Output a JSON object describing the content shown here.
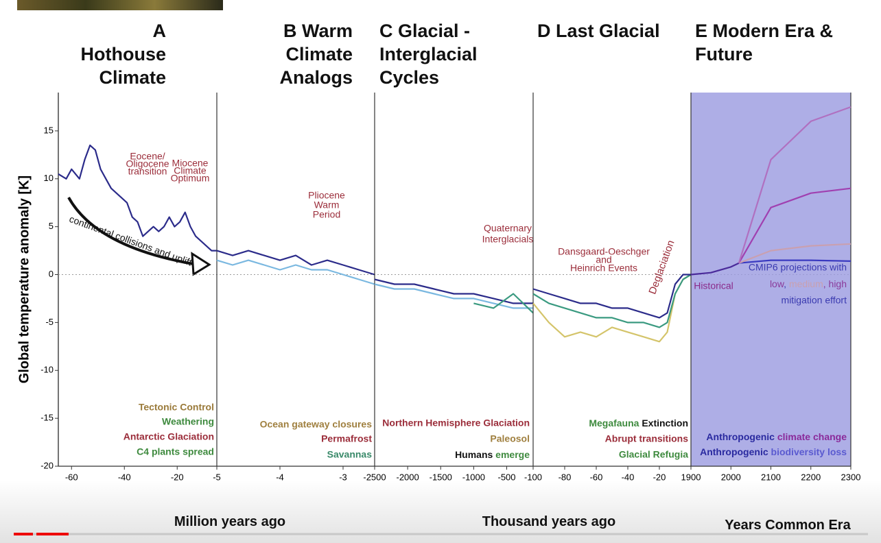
{
  "chart_data": [
    {
      "type": "line",
      "title": "A Hothouse Climate",
      "ylabel": "Global temperature anomaly [K]",
      "xlabel": "Million years ago",
      "xlim": [
        -65,
        -5
      ],
      "xticks": [
        -60,
        -40,
        -20
      ],
      "ylim": [
        -20,
        19
      ],
      "yticks": [
        -20,
        -15,
        -10,
        -5,
        0,
        5,
        10,
        15
      ],
      "reference_line": 0,
      "x": [
        -65,
        -62,
        -60,
        -57,
        -55,
        -53,
        -51,
        -49,
        -47,
        -45,
        -43,
        -41,
        -39,
        -37,
        -35,
        -33,
        -31,
        -29,
        -27,
        -25,
        -23,
        -21,
        -19,
        -17,
        -15,
        -13,
        -11,
        -9,
        -7,
        -5
      ],
      "series": [
        {
          "color": "#2b2b8a",
          "values": [
            10.5,
            10,
            11,
            10,
            12,
            13.5,
            13,
            11,
            10,
            9,
            8.5,
            8,
            7.5,
            6,
            5.5,
            4,
            4.5,
            5,
            4.5,
            5,
            6,
            5,
            5.5,
            6.5,
            5,
            4,
            3.5,
            3,
            2.5,
            2.5
          ]
        }
      ],
      "annotations": [
        {
          "color": "#9b2d3a",
          "lines": [
            "Eocene/",
            "Oligocene",
            "transition"
          ]
        },
        {
          "color": "#9b2d3a",
          "lines": [
            "Miocene",
            "Climate",
            "Optimum"
          ]
        },
        {
          "color": "#111111",
          "lines": [
            "continental collisions and uplift"
          ]
        },
        {
          "color": "#9a7a3a",
          "lines": [
            "Tectonic Control"
          ]
        },
        {
          "color": "#3e8a3e",
          "lines": [
            "Weathering"
          ]
        },
        {
          "color": "#9b2d3a",
          "lines": [
            "Antarctic Glaciation"
          ]
        },
        {
          "color": "#3e8a3e",
          "lines": [
            "C4 plants spread"
          ]
        }
      ]
    },
    {
      "type": "line",
      "title": "B Warm Climate Analogs",
      "xlim": [
        -5,
        -2.5
      ],
      "xticks": [
        -5,
        -4,
        -3
      ],
      "ylim": [
        -20,
        19
      ],
      "x": [
        -5,
        -4.75,
        -4.5,
        -4.25,
        -4,
        -3.75,
        -3.5,
        -3.25,
        -3,
        -2.75,
        -2.5
      ],
      "series": [
        {
          "color": "#2b2b8a",
          "values": [
            2.5,
            2,
            2.5,
            2,
            1.5,
            2,
            1,
            1.5,
            1,
            0.5,
            0
          ]
        },
        {
          "color": "#7ab8e0",
          "values": [
            1.5,
            1,
            1.5,
            1,
            0.5,
            1,
            0.5,
            0.5,
            0,
            -0.5,
            -1
          ]
        }
      ],
      "annotations": [
        {
          "color": "#9b2d3a",
          "lines": [
            "Pliocene",
            "Warm",
            "Period"
          ]
        },
        {
          "color": "#a08040",
          "lines": [
            "Ocean gateway closures"
          ]
        },
        {
          "color": "#9b2d3a",
          "lines": [
            "Permafrost"
          ]
        },
        {
          "color": "#3a8a6a",
          "lines": [
            "Savannas"
          ]
        }
      ]
    },
    {
      "type": "line",
      "title": "C Glacial - Interglacial Cycles",
      "xlabel": "Thousand years ago",
      "xlim": [
        -2500,
        -100
      ],
      "xticks": [
        -2500,
        -2000,
        -1500,
        -1000,
        -500
      ],
      "ylim": [
        -20,
        19
      ],
      "x": [
        -2500,
        -2200,
        -1900,
        -1600,
        -1300,
        -1000,
        -700,
        -400,
        -100
      ],
      "series": [
        {
          "color": "#2b2b8a",
          "values": [
            -0.5,
            -1,
            -1,
            -1.5,
            -2,
            -2,
            -2.5,
            -3,
            -3
          ]
        },
        {
          "color": "#7ab8e0",
          "values": [
            -1,
            -1.5,
            -1.5,
            -2,
            -2.5,
            -2.5,
            -3,
            -3.5,
            -3.5
          ]
        },
        {
          "color": "#3a9a80",
          "values": [
            null,
            null,
            null,
            null,
            null,
            -3,
            -3.5,
            -2,
            -4
          ]
        }
      ],
      "annotations": [
        {
          "color": "#9b2d3a",
          "lines": [
            "Quaternary",
            "Interglacials"
          ]
        },
        {
          "color": "#9b2d3a",
          "lines": [
            "Northern Hemisphere Glaciation"
          ]
        },
        {
          "color": "#a08040",
          "lines": [
            "Paleosol"
          ]
        },
        {
          "color": "#111111",
          "lines": [
            [
              {
                "text": "Humans",
                "color": "#111111"
              },
              {
                "text": " emerge",
                "color": "#3e8a3e"
              }
            ]
          ]
        }
      ]
    },
    {
      "type": "line",
      "title": "D Last Glacial",
      "xlim": [
        -100,
        0
      ],
      "xticks": [
        -100,
        -80,
        -60,
        -40,
        -20
      ],
      "ylim": [
        -20,
        19
      ],
      "x": [
        -100,
        -90,
        -80,
        -70,
        -60,
        -50,
        -40,
        -30,
        -20,
        -15,
        -10,
        -5,
        0
      ],
      "series": [
        {
          "color": "#d4c46a",
          "values": [
            -3,
            -5,
            -6.5,
            -6,
            -6.5,
            -5.5,
            -6,
            -6.5,
            -7,
            -6,
            -2,
            -0.5,
            0
          ]
        },
        {
          "color": "#3a9a80",
          "values": [
            -2,
            -3,
            -3.5,
            -4,
            -4.5,
            -4.5,
            -5,
            -5,
            -5.5,
            -5,
            -2,
            -0.5,
            0
          ]
        },
        {
          "color": "#2b2b8a",
          "values": [
            -1.5,
            -2,
            -2.5,
            -3,
            -3,
            -3.5,
            -3.5,
            -4,
            -4.5,
            -4,
            -1,
            0,
            0
          ]
        }
      ],
      "annotations": [
        {
          "color": "#9b2d3a",
          "lines": [
            "Dansgaard-Oeschger",
            "and",
            "Heinrich Events"
          ]
        },
        {
          "color": "#9b2d3a",
          "lines": [
            "Deglaciation"
          ]
        },
        {
          "color": "#111111",
          "lines": [
            [
              {
                "text": "Megafauna",
                "color": "#3e8a3e"
              },
              {
                "text": " Extinction",
                "color": "#111111"
              }
            ]
          ]
        },
        {
          "color": "#9b2d3a",
          "lines": [
            "Abrupt transitions"
          ]
        },
        {
          "color": "#3e8a3e",
          "lines": [
            "Glacial Refugia"
          ]
        }
      ]
    },
    {
      "type": "line",
      "title": "E Modern Era & Future",
      "xlabel": "Years Common Era",
      "background": "#9a9ae0",
      "xlim": [
        1900,
        2300
      ],
      "xticks": [
        1900,
        2000,
        2100,
        2200,
        2300
      ],
      "ylim": [
        -20,
        19
      ],
      "x": [
        1900,
        1950,
        2000,
        2020,
        2100,
        2200,
        2300
      ],
      "series": [
        {
          "color": "#4a2a9a",
          "values": [
            0,
            0.2,
            0.8,
            1.2,
            null,
            null,
            null
          ]
        },
        {
          "color": "#3a3ac0",
          "values": [
            null,
            null,
            null,
            1.2,
            1.5,
            1.5,
            1.4
          ]
        },
        {
          "color": "#c9a0b0",
          "values": [
            null,
            null,
            null,
            1.2,
            2.5,
            3,
            3.2
          ]
        },
        {
          "color": "#a040b0",
          "values": [
            null,
            null,
            null,
            1.2,
            7,
            8.5,
            9
          ]
        },
        {
          "color": "#b070c0",
          "values": [
            null,
            null,
            null,
            1.2,
            12,
            16,
            17.5
          ]
        }
      ],
      "annotations": [
        {
          "color": "#8a2a8a",
          "lines": [
            "Historical"
          ]
        },
        {
          "color": "#3a3ab0",
          "lines": [
            "CMIP6 projections with",
            [
              {
                "text": "low",
                "color": "#8a3a9a"
              },
              {
                "text": ", ",
                "color": "#3a3ab0"
              },
              {
                "text": "medium",
                "color": "#c9a0b0"
              },
              {
                "text": ", high",
                "color": "#8a3a9a"
              }
            ],
            "mitigation effort"
          ]
        },
        {
          "color": "#2a2aa0",
          "lines": [
            [
              {
                "text": "Anthropogenic",
                "color": "#2a2aa0"
              },
              {
                "text": " climate change",
                "color": "#8a2a9a"
              }
            ]
          ]
        },
        {
          "color": "#2a2aa0",
          "lines": [
            [
              {
                "text": "Anthropogenic",
                "color": "#2a2aa0"
              },
              {
                "text": " biodiversity loss",
                "color": "#5a5ad0"
              }
            ]
          ]
        }
      ]
    }
  ]
}
